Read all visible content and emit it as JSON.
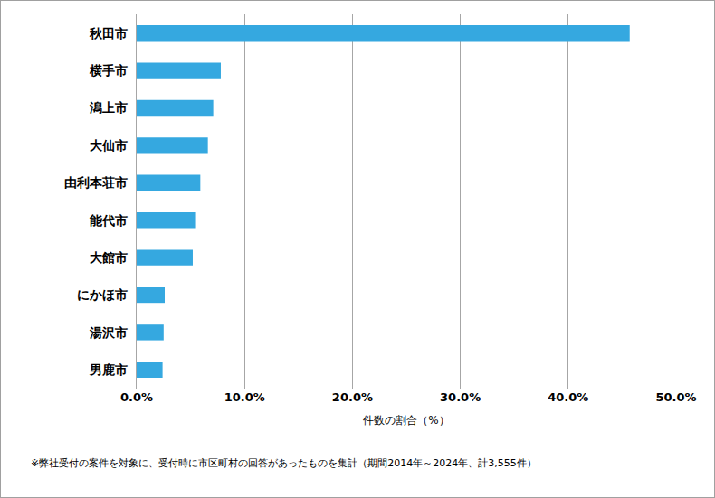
{
  "chart_data": {
    "type": "bar",
    "orientation": "horizontal",
    "categories": [
      "秋田市",
      "横手市",
      "潟上市",
      "大仙市",
      "由利本荘市",
      "能代市",
      "大館市",
      "にかほ市",
      "湯沢市",
      "男鹿市"
    ],
    "values": [
      45.7,
      7.8,
      7.1,
      6.6,
      5.9,
      5.5,
      5.2,
      2.6,
      2.5,
      2.4
    ],
    "color": "#35a8e0",
    "x_label": "件数の割合（%）",
    "xlim": [
      0,
      50
    ],
    "xticks": [
      {
        "value": 0,
        "label": "0.0%"
      },
      {
        "value": 10,
        "label": "10.0%"
      },
      {
        "value": 20,
        "label": "20.0%"
      },
      {
        "value": 30,
        "label": "30.0%"
      },
      {
        "value": 40,
        "label": "40.0%"
      },
      {
        "value": 50,
        "label": "50.0%"
      }
    ],
    "grid": true,
    "annotations": [
      "※弊社受付の案件を対象に、受付時に市区町村の回答があったものを集計（期間2014年～2024年、計3,555件）"
    ]
  }
}
